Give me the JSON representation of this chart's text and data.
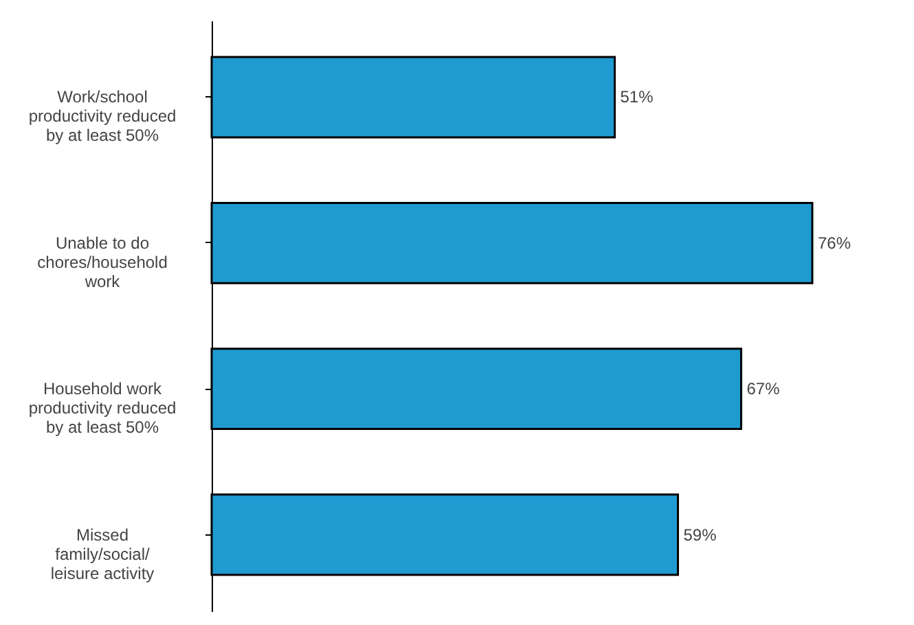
{
  "chart_data": {
    "type": "bar",
    "orientation": "horizontal",
    "categories": [
      "Work/school productivity reduced by at least 50%",
      "Unable to do chores/household work",
      "Household work productivity reduced by at least 50%",
      "Missed family/social/ leisure activity"
    ],
    "values": [
      51,
      76,
      67,
      59
    ],
    "value_labels": [
      "51%",
      "76%",
      "67%",
      "59%"
    ],
    "color": "#1f9bd1",
    "tick_labels": "y"
  }
}
